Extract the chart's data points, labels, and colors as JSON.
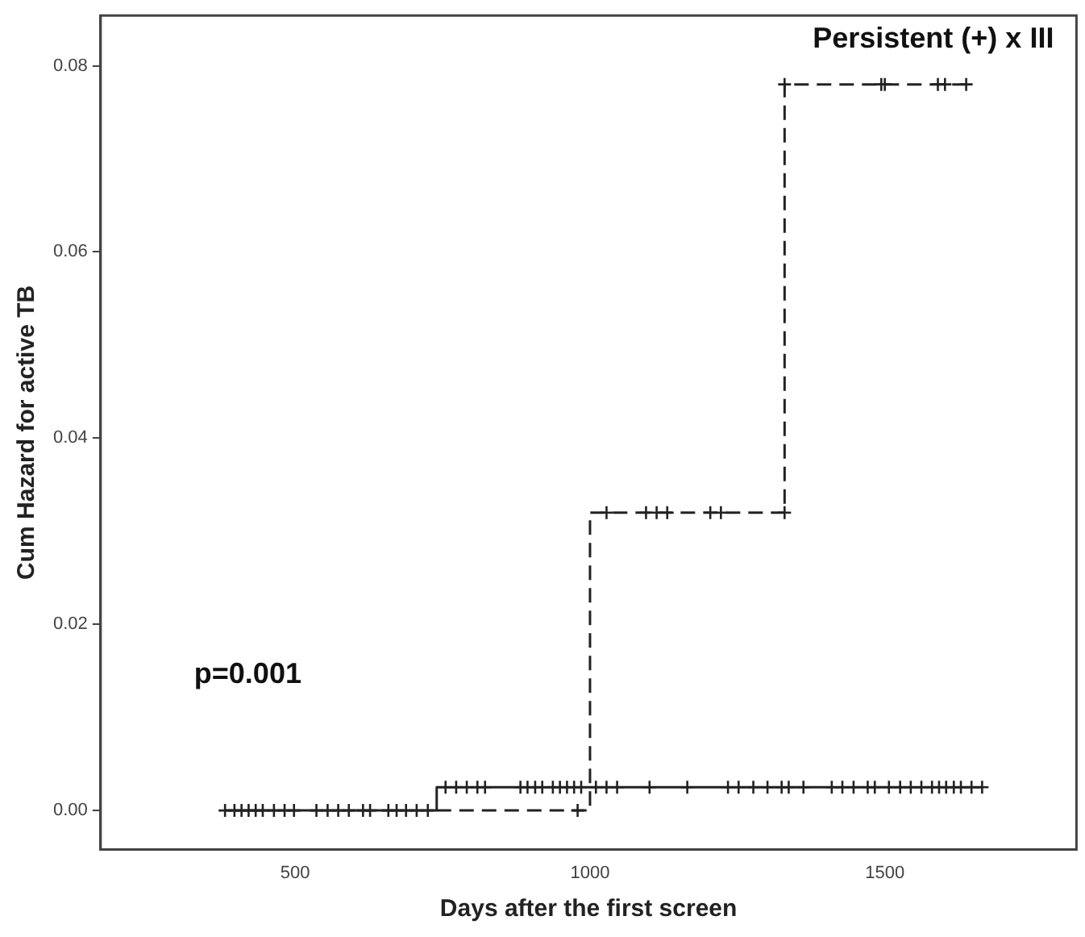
{
  "chart_data": {
    "type": "step",
    "title": "Persistent (+) x III",
    "xlabel": "Days after the first screen",
    "ylabel": "Cum Hazard for active TB",
    "annotations": [
      "p=0.001"
    ],
    "xlim": [
      170,
      1825
    ],
    "ylim": [
      -0.0042,
      0.0854
    ],
    "xticks": [
      500,
      1000,
      1500
    ],
    "yticks": [
      {
        "value": 0,
        "label": "0.00"
      },
      {
        "value": 0.02,
        "label": "0.02"
      },
      {
        "value": 0.04,
        "label": "0.04"
      },
      {
        "value": 0.06,
        "label": "0.06"
      },
      {
        "value": 0.08,
        "label": "0.08"
      }
    ],
    "series": [
      {
        "type": "step",
        "color": "#222222",
        "line_style": "solid",
        "x": [
          381,
          740,
          1665
        ],
        "values": [
          0,
          0.0025,
          0.0025
        ]
      },
      {
        "type": "step",
        "color": "#222222",
        "line_style": "dashed",
        "x": [
          740,
          1000,
          1330,
          1640
        ],
        "values": [
          0,
          0.032,
          0.078,
          0.078
        ]
      },
      {
        "type": "scatter",
        "color": "#222222",
        "marker": "cross",
        "x": [
          381,
          397,
          409,
          421,
          433,
          445,
          464,
          482,
          498,
          536,
          555,
          573,
          591,
          615,
          627,
          658,
          672,
          688,
          706,
          725
        ],
        "values": [
          0,
          0,
          0,
          0,
          0,
          0,
          0,
          0,
          0,
          0,
          0,
          0,
          0,
          0,
          0,
          0,
          0,
          0,
          0,
          0
        ]
      },
      {
        "type": "scatter",
        "color": "#222222",
        "marker": "cross",
        "x": [
          755,
          773,
          791,
          809,
          822,
          882,
          894,
          907,
          919,
          937,
          949,
          961,
          973,
          985,
          998,
          1010,
          1028,
          1046,
          1101,
          1165,
          1234,
          1252,
          1277,
          1301,
          1325,
          1337,
          1362,
          1410,
          1428,
          1447,
          1471,
          1483,
          1507,
          1526,
          1544,
          1562,
          1580,
          1592,
          1604,
          1617,
          1629,
          1647,
          1665
        ],
        "values": [
          0.0025,
          0.0025,
          0.0025,
          0.0025,
          0.0025,
          0.0025,
          0.0025,
          0.0025,
          0.0025,
          0.0025,
          0.0025,
          0.0025,
          0.0025,
          0.0025,
          null,
          0.0025,
          0.0025,
          0.0025,
          0.0025,
          0.0025,
          0.0025,
          0.0025,
          0.0025,
          0.0025,
          0.0025,
          0.0025,
          0.0025,
          0.0025,
          0.0025,
          0.0025,
          0.0025,
          0.0025,
          0.0025,
          0.0025,
          0.0025,
          0.0025,
          0.0025,
          0.0025,
          0.0025,
          0.0025,
          0.0025,
          0.0025,
          0.0025
        ]
      },
      {
        "type": "scatter",
        "color": "#222222",
        "marker": "cross",
        "x": [
          979
        ],
        "values": [
          0
        ]
      },
      {
        "type": "scatter",
        "color": "#222222",
        "marker": "cross",
        "x": [
          1028,
          1095,
          1113,
          1131,
          1204,
          1222,
          1330
        ],
        "values": [
          0.032,
          0.032,
          0.032,
          0.032,
          0.032,
          0.032,
          0.032
        ]
      },
      {
        "type": "scatter",
        "color": "#222222",
        "marker": "cross",
        "x": [
          1330,
          1494,
          1500,
          1590,
          1602,
          1638
        ],
        "values": [
          0.078,
          0.078,
          0.078,
          0.078,
          0.078,
          0.078
        ]
      }
    ]
  }
}
